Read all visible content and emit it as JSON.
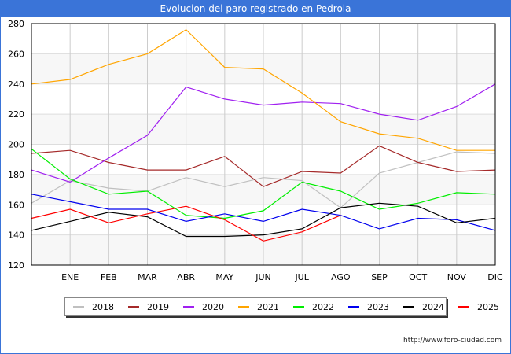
{
  "header": {
    "title": "Evolucion del paro registrado en Pedrola"
  },
  "footer": {
    "url": "http://www.foro-ciudad.com"
  },
  "chart_data": {
    "type": "line",
    "title": "Evolucion del paro registrado en Pedrola",
    "xlabel": "",
    "ylabel": "",
    "categories": [
      "",
      "ENE",
      "FEB",
      "MAR",
      "ABR",
      "MAY",
      "JUN",
      "JUL",
      "AGO",
      "SEP",
      "OCT",
      "NOV",
      "DIC"
    ],
    "ylim": [
      120,
      280
    ],
    "yticks": [
      120,
      140,
      160,
      180,
      200,
      220,
      240,
      260,
      280
    ],
    "grid": true,
    "legend_position": "bottom",
    "series": [
      {
        "name": "2018",
        "color": "#c0c0c0",
        "values": [
          161,
          176,
          171,
          169,
          178,
          172,
          178,
          176,
          158,
          181,
          188,
          195,
          194
        ]
      },
      {
        "name": "2019",
        "color": "#a52a2a",
        "values": [
          194,
          196,
          188,
          183,
          183,
          192,
          172,
          182,
          181,
          199,
          188,
          182,
          183
        ]
      },
      {
        "name": "2020",
        "color": "#a020f0",
        "values": [
          183,
          175,
          191,
          206,
          238,
          230,
          226,
          228,
          227,
          220,
          216,
          225,
          240
        ]
      },
      {
        "name": "2021",
        "color": "#ffa500",
        "values": [
          240,
          243,
          253,
          260,
          276,
          251,
          250,
          234,
          215,
          207,
          204,
          196,
          196
        ]
      },
      {
        "name": "2022",
        "color": "#00ee00",
        "values": [
          197,
          177,
          167,
          169,
          153,
          151,
          156,
          175,
          169,
          157,
          161,
          168,
          167
        ]
      },
      {
        "name": "2023",
        "color": "#0000ee",
        "values": [
          167,
          162,
          157,
          157,
          149,
          154,
          149,
          157,
          153,
          144,
          151,
          150,
          143
        ]
      },
      {
        "name": "2024",
        "color": "#000000",
        "values": [
          143,
          149,
          155,
          152,
          139,
          139,
          140,
          144,
          158,
          161,
          159,
          148,
          151
        ]
      },
      {
        "name": "2025",
        "color": "#ff0000",
        "values": [
          151,
          157,
          148,
          154,
          159,
          150,
          136,
          142,
          153,
          null,
          null,
          null,
          null
        ]
      }
    ]
  }
}
